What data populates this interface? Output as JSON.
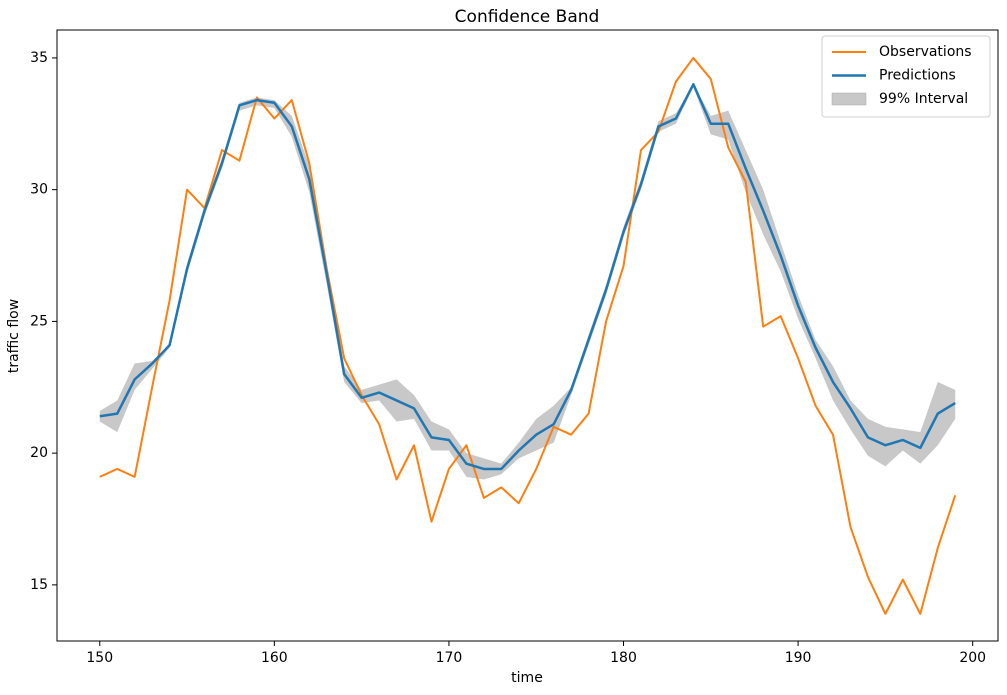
{
  "chart_data": {
    "type": "line",
    "title": "Confidence Band",
    "xlabel": "time",
    "ylabel": "traffic flow",
    "x": [
      150,
      151,
      152,
      153,
      154,
      155,
      156,
      157,
      158,
      159,
      160,
      161,
      162,
      163,
      164,
      165,
      166,
      167,
      168,
      169,
      170,
      171,
      172,
      173,
      174,
      175,
      176,
      177,
      178,
      179,
      180,
      181,
      182,
      183,
      184,
      185,
      186,
      187,
      188,
      189,
      190,
      191,
      192,
      193,
      194,
      195,
      196,
      197,
      198,
      199
    ],
    "series": [
      {
        "name": "Observations",
        "color": "#ff7f0e",
        "values": [
          19.1,
          19.4,
          19.1,
          22.5,
          25.8,
          30.0,
          29.3,
          31.5,
          31.1,
          33.5,
          32.7,
          33.4,
          31.0,
          27.0,
          23.6,
          22.2,
          21.1,
          19.0,
          20.3,
          17.4,
          19.4,
          20.3,
          18.3,
          18.7,
          18.1,
          19.4,
          21.0,
          20.7,
          21.5,
          25.0,
          27.1,
          31.5,
          32.2,
          34.1,
          35.0,
          34.2,
          31.6,
          30.3,
          24.8,
          25.2,
          23.6,
          21.8,
          20.7,
          17.2,
          15.3,
          13.9,
          15.2,
          13.9,
          16.4,
          18.4
        ]
      },
      {
        "name": "Predictions",
        "color": "#1f77b4",
        "values": [
          21.4,
          21.5,
          22.8,
          23.4,
          24.1,
          27.0,
          29.2,
          31.0,
          33.2,
          33.4,
          33.3,
          32.4,
          30.4,
          26.8,
          23.0,
          22.1,
          22.3,
          22.0,
          21.7,
          20.6,
          20.5,
          19.6,
          19.4,
          19.4,
          20.1,
          20.7,
          21.1,
          22.4,
          24.3,
          26.2,
          28.4,
          30.2,
          32.4,
          32.7,
          34.0,
          32.5,
          32.5,
          30.8,
          29.2,
          27.5,
          25.6,
          24.0,
          22.7,
          21.7,
          20.6,
          20.3,
          20.5,
          20.2,
          21.5,
          21.9
        ]
      }
    ],
    "band": {
      "name": "99% Interval",
      "color": "#c8c8c8",
      "upper": [
        21.6,
        22.0,
        23.4,
        23.5,
        24.1,
        27.2,
        29.4,
        31.2,
        33.3,
        33.5,
        33.4,
        32.8,
        30.9,
        27.2,
        23.3,
        22.4,
        22.6,
        22.8,
        22.2,
        21.2,
        20.9,
        20.0,
        19.8,
        19.6,
        20.4,
        21.3,
        21.8,
        22.5,
        24.5,
        26.4,
        28.6,
        30.4,
        32.6,
        32.9,
        34.0,
        32.8,
        33.0,
        31.5,
        30.0,
        28.0,
        26.0,
        24.3,
        23.3,
        22.0,
        21.3,
        21.0,
        20.9,
        20.8,
        22.7,
        22.4
      ],
      "lower": [
        21.2,
        20.8,
        22.4,
        23.2,
        24.0,
        26.8,
        29.0,
        30.8,
        33.0,
        33.2,
        33.1,
        32.0,
        29.9,
        26.4,
        22.7,
        21.9,
        22.0,
        21.2,
        21.3,
        20.1,
        20.1,
        19.1,
        19.0,
        19.2,
        19.8,
        20.1,
        20.4,
        22.2,
        24.1,
        26.0,
        28.2,
        30.0,
        32.2,
        32.5,
        33.9,
        32.1,
        31.9,
        29.9,
        28.3,
        26.9,
        25.1,
        23.6,
        22.0,
        20.9,
        19.9,
        19.5,
        20.1,
        19.6,
        20.3,
        21.3
      ]
    },
    "xlim": [
      147.55,
      201.45
    ],
    "ylim": [
      12.87,
      36.06
    ],
    "xticks": [
      150,
      160,
      170,
      180,
      190,
      200
    ],
    "yticks": [
      15,
      20,
      25,
      30,
      35
    ],
    "legend": "upper right"
  }
}
